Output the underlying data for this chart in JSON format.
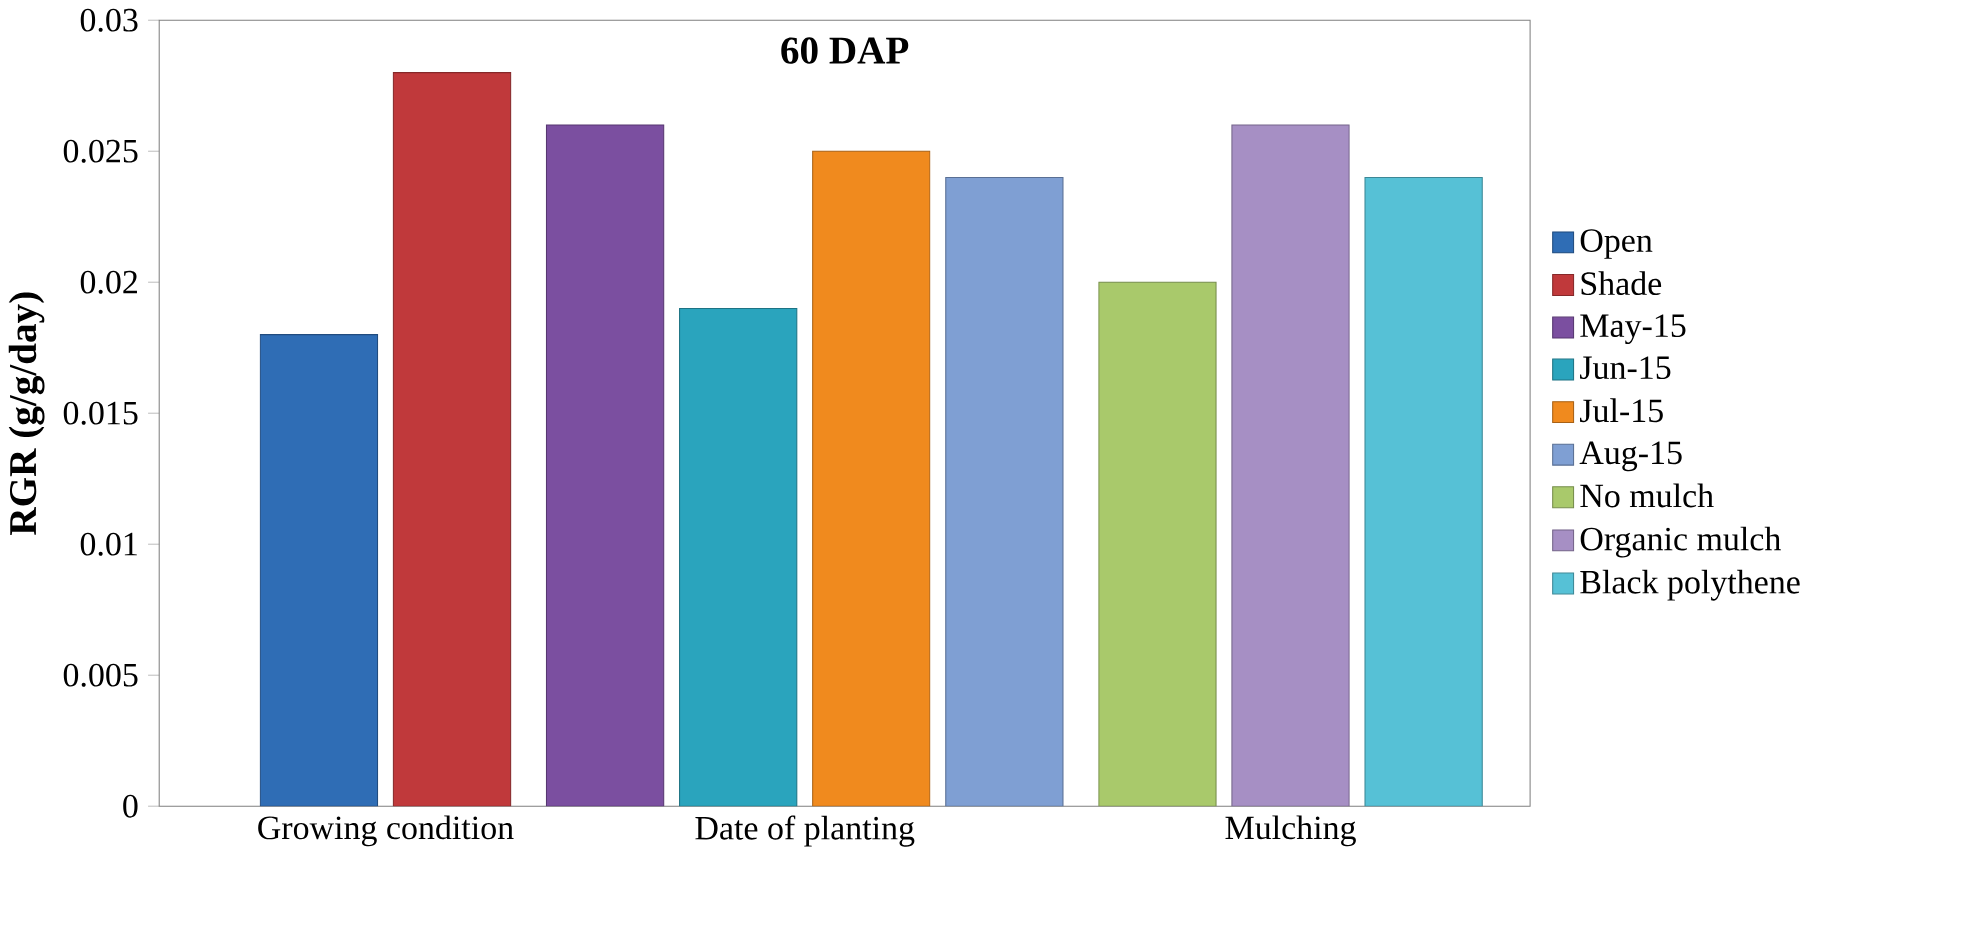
{
  "chart_data": {
    "type": "bar",
    "title": "60 DAP",
    "ylabel": "RGR (g/g/day)",
    "categories": [
      "Growing condition",
      "Date of planting",
      "Mulching"
    ],
    "series": [
      {
        "name": "Open",
        "color": "#2f6db5",
        "values": [
          0.018,
          null,
          null
        ]
      },
      {
        "name": "Shade",
        "color": "#c0393b",
        "values": [
          0.028,
          null,
          null
        ]
      },
      {
        "name": "May-15",
        "color": "#7b4fa0",
        "values": [
          null,
          0.026,
          null
        ]
      },
      {
        "name": "Jun-15",
        "color": "#2aa4bd",
        "values": [
          null,
          0.019,
          null
        ]
      },
      {
        "name": "Jul-15",
        "color": "#f08a1e",
        "values": [
          null,
          0.025,
          null
        ]
      },
      {
        "name": "Aug-15",
        "color": "#7f9fd3",
        "values": [
          null,
          0.024,
          null
        ]
      },
      {
        "name": "No mulch",
        "color": "#a9c96b",
        "values": [
          null,
          null,
          0.02
        ]
      },
      {
        "name": "Organic mulch",
        "color": "#a68fc4",
        "values": [
          null,
          null,
          0.026
        ]
      },
      {
        "name": "Black polythene",
        "color": "#56c1d6",
        "values": [
          null,
          null,
          0.024
        ]
      }
    ],
    "ylim": [
      0,
      0.03
    ],
    "yticks": [
      0,
      0.005,
      0.01,
      0.015,
      0.02,
      0.025,
      0.03
    ],
    "legend": "right"
  }
}
